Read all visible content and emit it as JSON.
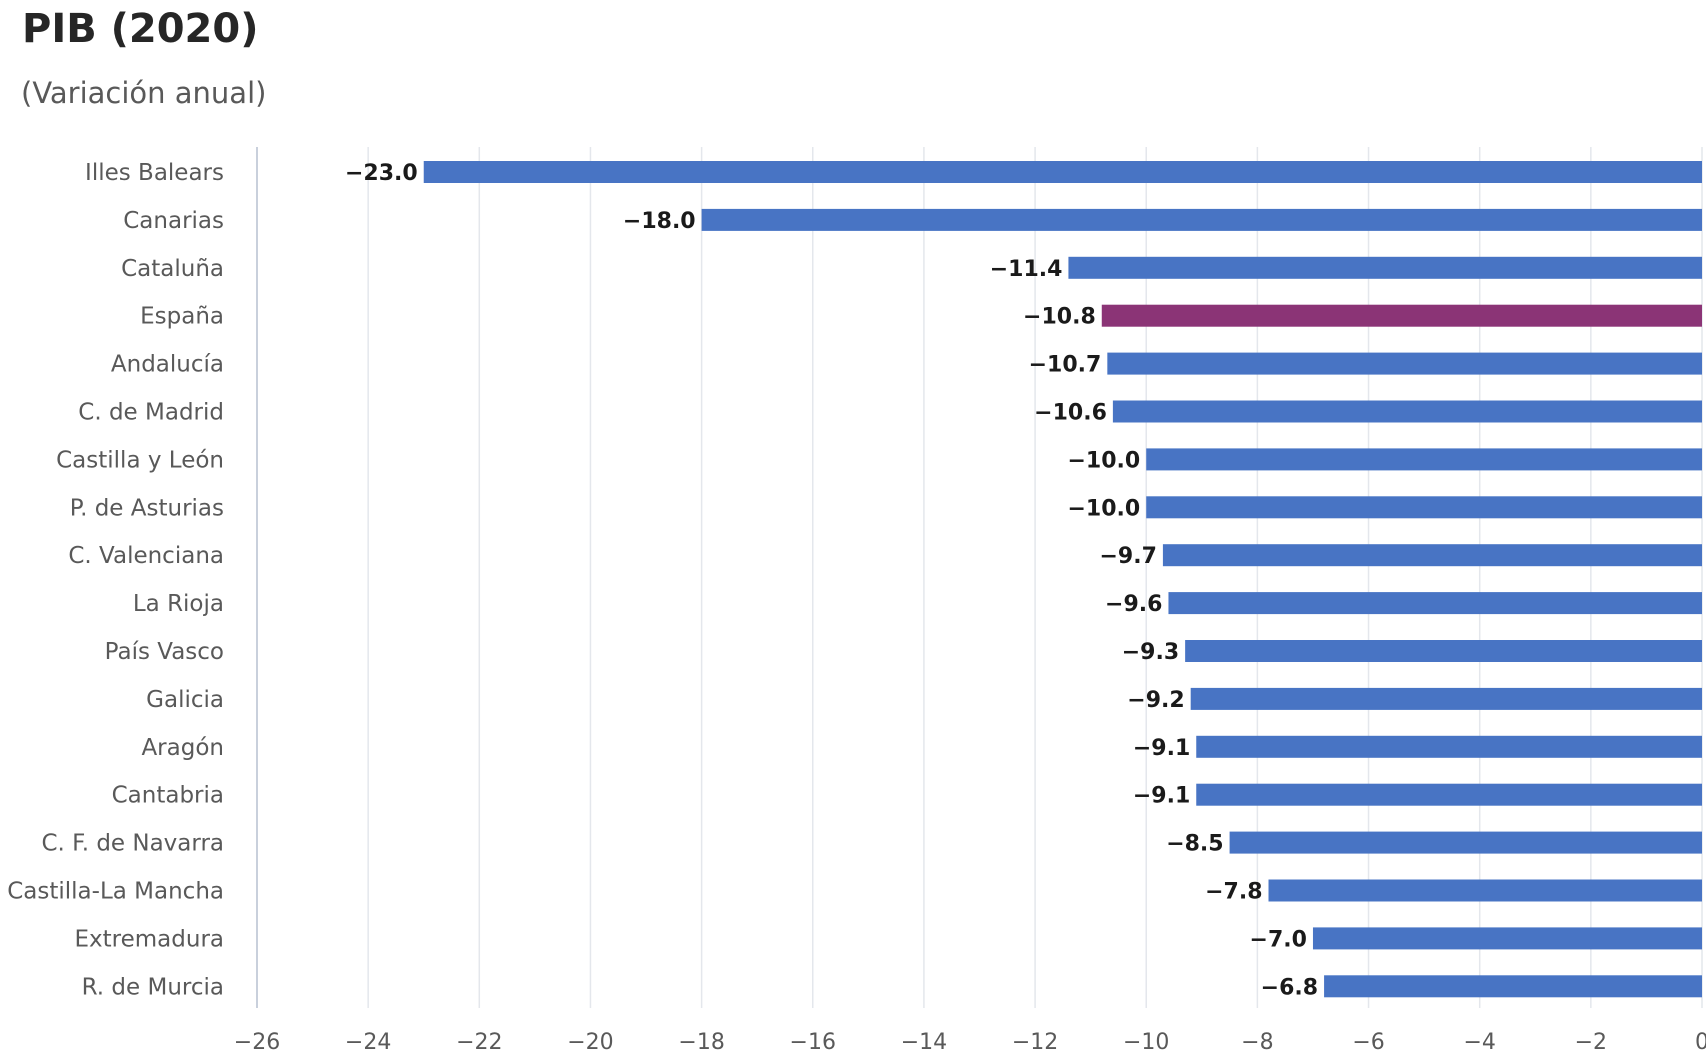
{
  "chart_data": {
    "type": "bar",
    "orientation": "horizontal",
    "title": "PIB (2020)",
    "subtitle": "(Variación anual)",
    "xlabel": "",
    "ylabel": "",
    "xlim": [
      -26,
      0
    ],
    "x_ticks": [
      -26,
      -24,
      -22,
      -20,
      -18,
      -16,
      -14,
      -12,
      -10,
      -8,
      -6,
      -4,
      -2,
      0
    ],
    "grid": "vertical",
    "legend": "none",
    "categories": [
      "Illes Balears",
      "Canarias",
      "Cataluña",
      "España",
      "Andalucía",
      "C. de Madrid",
      "Castilla y León",
      "P. de Asturias",
      "C. Valenciana",
      "La Rioja",
      "País Vasco",
      "Galicia",
      "Aragón",
      "Cantabria",
      "C. F. de Navarra",
      "Castilla-La Mancha",
      "Extremadura",
      "R. de Murcia"
    ],
    "values": [
      -23.0,
      -18.0,
      -11.4,
      -10.8,
      -10.7,
      -10.6,
      -10.0,
      -10.0,
      -9.7,
      -9.6,
      -9.3,
      -9.2,
      -9.1,
      -9.1,
      -8.5,
      -7.8,
      -7.0,
      -6.8
    ],
    "data_labels": [
      "−23.0",
      "−18.0",
      "−11.4",
      "−10.8",
      "−10.7",
      "−10.6",
      "−10.0",
      "−10.0",
      "−9.7",
      "−9.6",
      "−9.3",
      "−9.2",
      "−9.1",
      "−9.1",
      "−8.5",
      "−7.8",
      "−7.0",
      "−6.8"
    ],
    "tick_labels": [
      "−26",
      "−24",
      "−22",
      "−20",
      "−18",
      "−16",
      "−14",
      "−12",
      "−10",
      "−8",
      "−6",
      "−4",
      "−2",
      "0"
    ],
    "bar_color": "#4874C4",
    "highlight_color": "#8B3476",
    "highlight_category": "España"
  }
}
